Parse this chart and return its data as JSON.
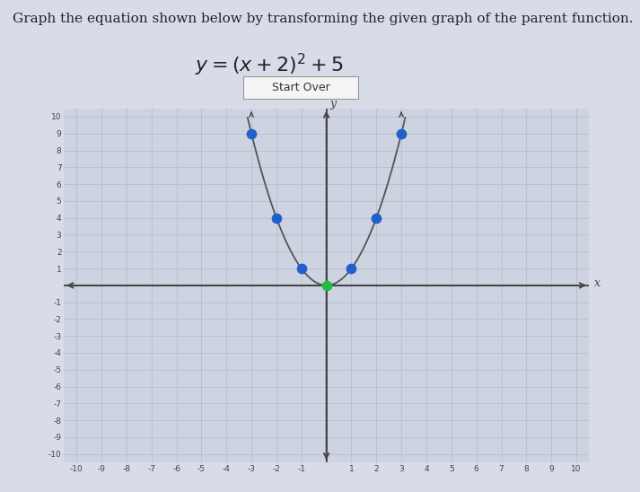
{
  "title": "Graph the equation shown below by transforming the given graph of the parent function.",
  "equation_latex": "$y = (x + 2)^2 + 5$",
  "button_text": "Start Over",
  "bg_color": "#d8dce8",
  "graph_bg_color": "#cdd3e0",
  "grid_color": "#b8bece",
  "axis_color": "#444444",
  "curve_color": "#555555",
  "dot_color": "#2060cc",
  "origin_dot_color": "#22bb44",
  "dot_size": 55,
  "xlim": [
    -10,
    10
  ],
  "ylim": [
    -10,
    10
  ],
  "x_dots": [
    -1,
    1,
    -2,
    2,
    -3,
    3
  ],
  "y_dots": [
    1,
    1,
    4,
    4,
    9,
    9
  ],
  "origin_x": [
    0
  ],
  "origin_y": [
    0
  ],
  "figsize": [
    7.13,
    5.48
  ],
  "dpi": 100,
  "title_fontsize": 11,
  "eq_fontsize": 16,
  "btn_fontsize": 9,
  "tick_fontsize": 6.5,
  "axis_label_fontsize": 9
}
